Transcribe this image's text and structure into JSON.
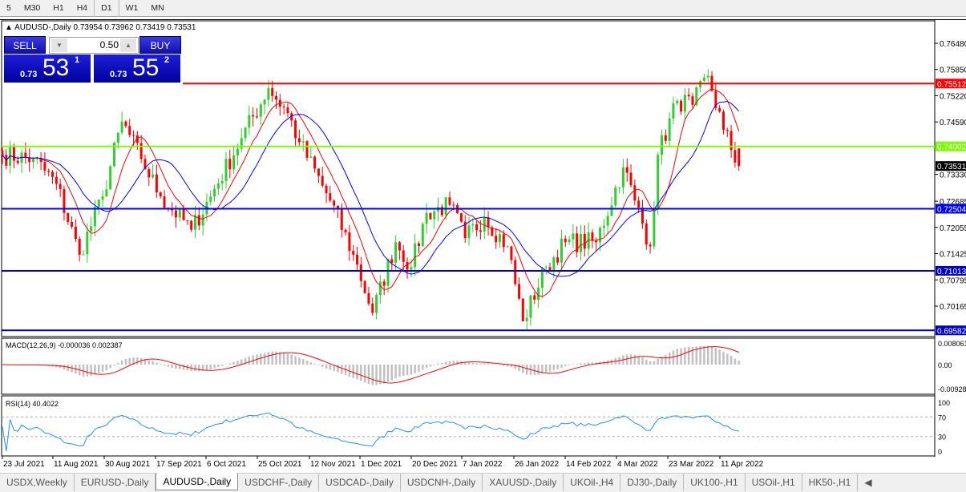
{
  "timeframes": [
    "5",
    "M30",
    "H1",
    "H4",
    "D1",
    "W1",
    "MN"
  ],
  "chart_title": {
    "symbol": "AUDUSD-,Daily",
    "ohlc": "0.73954 0.73962 0.73419 0.73531"
  },
  "trade_panel": {
    "sell_label": "SELL",
    "buy_label": "BUY",
    "lot": "0.50",
    "sell": {
      "prefix": "0.73",
      "big": "53",
      "sup": "1"
    },
    "buy": {
      "prefix": "0.73",
      "big": "55",
      "sup": "2"
    }
  },
  "price_axis": [
    "0.76480",
    "0.75850",
    "0.75220",
    "0.74590",
    "0.73330",
    "0.72685",
    "0.72055",
    "0.71425",
    "0.70795",
    "0.70165"
  ],
  "hlines": [
    {
      "price": 0.75512,
      "label": "0.75512",
      "color": "#ff0000"
    },
    {
      "price": 0.74002,
      "label": "0.74002",
      "color": "#7cfc00"
    },
    {
      "price": 0.72504,
      "label": "0.72504",
      "color": "#0000ff"
    },
    {
      "price": 0.71013,
      "label": "0.71013",
      "color": "#0000cc"
    },
    {
      "price": 0.69582,
      "label": "0.69582",
      "color": "#0000cc"
    }
  ],
  "current_price": "0.73531",
  "price_keypoints": [
    [
      0,
      0.738
    ],
    [
      8,
      0.737
    ],
    [
      14,
      0.731
    ],
    [
      20,
      0.714
    ],
    [
      26,
      0.728
    ],
    [
      31,
      0.746
    ],
    [
      36,
      0.737
    ],
    [
      41,
      0.728
    ],
    [
      49,
      0.72
    ],
    [
      54,
      0.728
    ],
    [
      62,
      0.742
    ],
    [
      69,
      0.754
    ],
    [
      74,
      0.748
    ],
    [
      77,
      0.741
    ],
    [
      85,
      0.727
    ],
    [
      91,
      0.714
    ],
    [
      96,
      0.7
    ],
    [
      102,
      0.717
    ],
    [
      106,
      0.711
    ],
    [
      110,
      0.724
    ],
    [
      116,
      0.726
    ],
    [
      120,
      0.718
    ],
    [
      125,
      0.723
    ],
    [
      131,
      0.716
    ],
    [
      135,
      0.698
    ],
    [
      141,
      0.711
    ],
    [
      146,
      0.717
    ],
    [
      154,
      0.717
    ],
    [
      161,
      0.735
    ],
    [
      164,
      0.727
    ],
    [
      168,
      0.716
    ],
    [
      170,
      0.738
    ],
    [
      175,
      0.751
    ],
    [
      179,
      0.75
    ],
    [
      183,
      0.757
    ],
    [
      187,
      0.744
    ],
    [
      191,
      0.7353
    ]
  ],
  "macd": {
    "label": "MACD(12,26,9) -0.000036 0.002387",
    "axis": [
      "0.008061",
      "0.00",
      "-0.00928"
    ]
  },
  "rsi": {
    "label": "RSI(14) 40.4022",
    "axis": [
      "100",
      "70",
      "30",
      "0"
    ]
  },
  "dates": [
    "23 Jul 2021",
    "11 Aug 2021",
    "30 Aug 2021",
    "17 Sep 2021",
    "6 Oct 2021",
    "25 Oct 2021",
    "12 Nov 2021",
    "1 Dec 2021",
    "20 Dec 2021",
    "7 Jan 2022",
    "26 Jan 2022",
    "14 Feb 2022",
    "4 Mar 2022",
    "23 Mar 2022",
    "11 Apr 2022"
  ],
  "tabs": [
    {
      "label": "USDX,Weekly"
    },
    {
      "label": "EURUSD-,Daily"
    },
    {
      "label": "AUDUSD-,Daily",
      "active": true
    },
    {
      "label": "USDCHF-,Daily"
    },
    {
      "label": "USDCAD-,Daily"
    },
    {
      "label": "USDCNH-,Daily"
    },
    {
      "label": "XAUUSD-,Daily"
    },
    {
      "label": "UKOil-,H4"
    },
    {
      "label": "DJ30-,Daily"
    },
    {
      "label": "UK100-,H1"
    },
    {
      "label": "USOil-,H1"
    },
    {
      "label": "HK50-,H1"
    }
  ],
  "colors": {
    "bull": "#32cd32",
    "bear": "#ff0000",
    "ma_fast": "#ff0000",
    "ma_slow": "#0000ff",
    "rsi": "#1e90ff",
    "macd_hist": "#c0c0c0"
  }
}
